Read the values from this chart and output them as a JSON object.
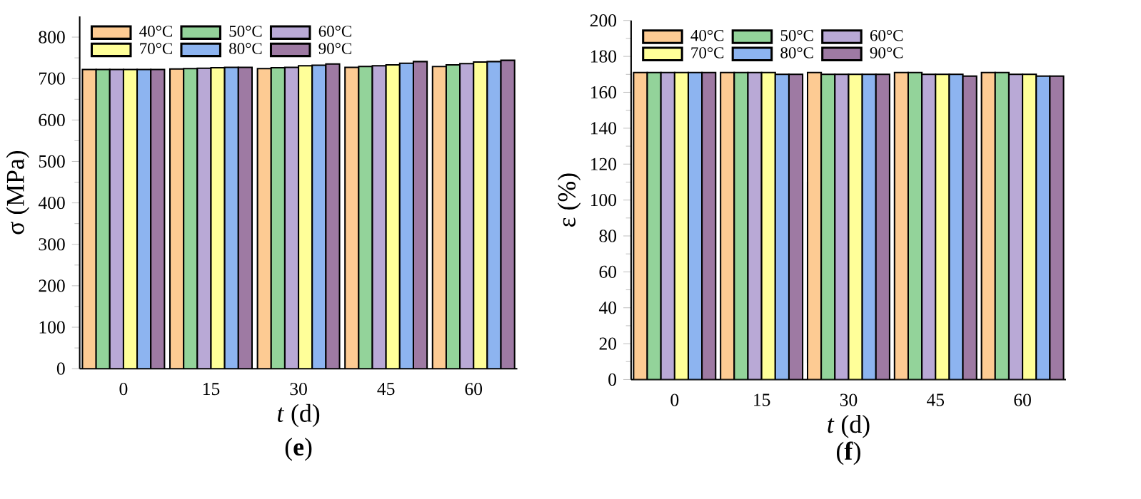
{
  "chart_data": [
    {
      "type": "bar",
      "title": "(**e**)",
      "xlabel": "*t* (d)",
      "ylabel": "σ (MPa)",
      "categories": [
        "0",
        "15",
        "30",
        "45",
        "60"
      ],
      "ylim": [
        0,
        850
      ],
      "yticks": [
        0,
        100,
        200,
        300,
        400,
        500,
        600,
        700,
        800
      ],
      "legend": "top left",
      "grid": false,
      "series": [
        {
          "name": "40°C",
          "color": "#fdcb93",
          "values": [
            722,
            723,
            724,
            727,
            729
          ]
        },
        {
          "name": "50°C",
          "color": "#93d39a",
          "values": [
            722,
            724,
            726,
            729,
            733
          ]
        },
        {
          "name": "60°C",
          "color": "#b9a9d6",
          "values": [
            722,
            725,
            727,
            731,
            736
          ]
        },
        {
          "name": "70°C",
          "color": "#ffff99",
          "values": [
            722,
            726,
            731,
            733,
            740
          ]
        },
        {
          "name": "80°C",
          "color": "#8db4f0",
          "values": [
            722,
            727,
            732,
            737,
            741
          ]
        },
        {
          "name": "90°C",
          "color": "#9e7aa3",
          "values": [
            722,
            727,
            735,
            741,
            744
          ]
        }
      ]
    },
    {
      "type": "bar",
      "title": "(**f**)",
      "xlabel": "*t* (d)",
      "ylabel": "ε (%)",
      "categories": [
        "0",
        "15",
        "30",
        "45",
        "60"
      ],
      "ylim": [
        0,
        200
      ],
      "yticks": [
        0,
        20,
        40,
        60,
        80,
        100,
        120,
        140,
        160,
        180,
        200
      ],
      "legend": "top left",
      "grid": false,
      "series": [
        {
          "name": "40°C",
          "color": "#fdcb93",
          "values": [
            171,
            171,
            171,
            171,
            171
          ]
        },
        {
          "name": "50°C",
          "color": "#93d39a",
          "values": [
            171,
            171,
            170,
            171,
            171
          ]
        },
        {
          "name": "60°C",
          "color": "#b9a9d6",
          "values": [
            171,
            171,
            170,
            170,
            170
          ]
        },
        {
          "name": "70°C",
          "color": "#ffff99",
          "values": [
            171,
            171,
            170,
            170,
            170
          ]
        },
        {
          "name": "80°C",
          "color": "#8db4f0",
          "values": [
            171,
            170,
            170,
            170,
            169
          ]
        },
        {
          "name": "90°C",
          "color": "#9e7aa3",
          "values": [
            171,
            170,
            170,
            169,
            169
          ]
        }
      ]
    }
  ]
}
